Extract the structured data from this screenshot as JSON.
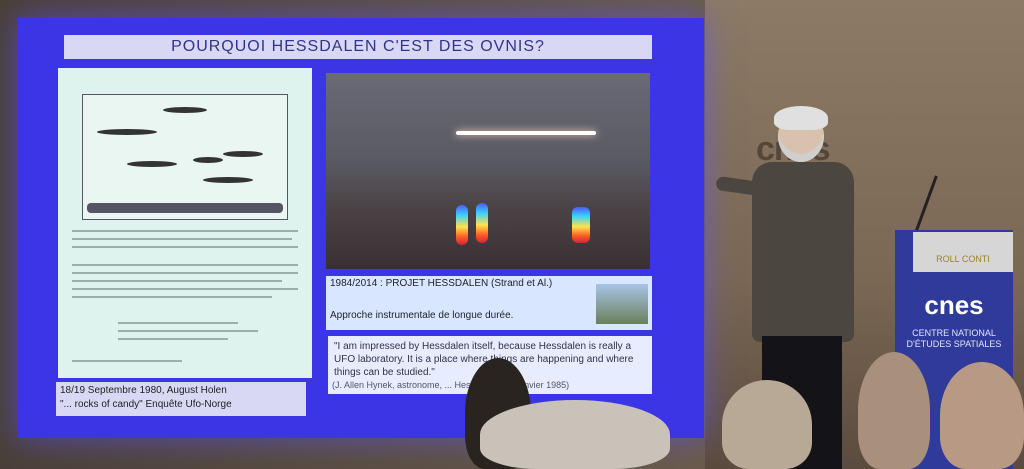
{
  "slide": {
    "title": "POURQUOI HESSDALEN C'EST DES OVNIS?",
    "doc_caption_line1": "18/19 Septembre 1980, August Holen",
    "doc_caption_line2": "\"... rocks of candy\" Enquête Ufo-Norge",
    "project_title": "1984/2014 : PROJET HESSDALEN (Strand et Al.)",
    "project_subtitle": "Approche instrumentale de longue durée.",
    "quote_text": "\"I am impressed by Hessdalen itself, because Hessdalen is really a UFO laboratory. It is a place where things are happening and where things can be studied.\"",
    "quote_attribution": "(J. Allen Hynek, astronome, ... Hessdalen, 27 Janvier 1985)"
  },
  "backdrop": {
    "logo": "cnes"
  },
  "podium": {
    "name_tag": "ROLL CONTI",
    "logo": "cnes",
    "subtitle_line1": "CENTRE NATIONAL",
    "subtitle_line2": "D'ÉTUDES SPATIALES"
  },
  "colors": {
    "screen_blue": "#3b35e6",
    "podium_blue": "#2f3a9a"
  }
}
